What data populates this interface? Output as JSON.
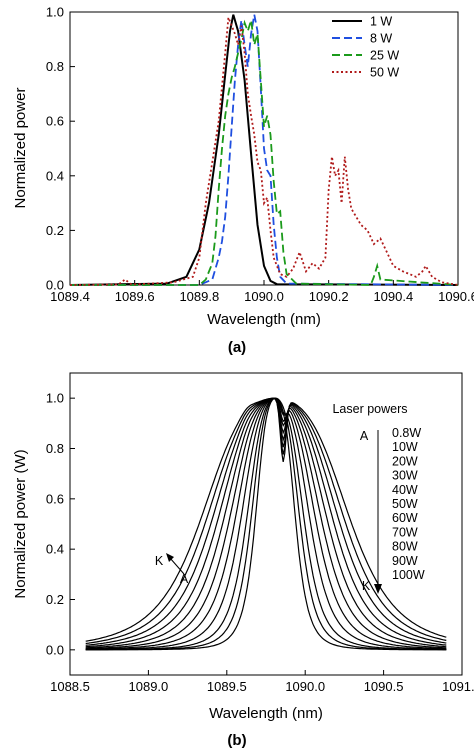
{
  "figure": {
    "panel_a_label": "(a)",
    "panel_b_label": "(b)"
  },
  "chart_data": [
    {
      "type": "line",
      "panel": "(a)",
      "xlabel": "Wavelength (nm)",
      "ylabel": "Normalized power",
      "xlim": [
        1089.4,
        1090.6
      ],
      "ylim": [
        0,
        1.0
      ],
      "xticks": [
        "1089.4",
        "1089.6",
        "1089.8",
        "1090.0",
        "1090.2",
        "1090.4",
        "1090.6"
      ],
      "yticks": [
        "0.0",
        "0.2",
        "0.4",
        "0.6",
        "0.8",
        "1.0"
      ],
      "legend_position": "top-right",
      "series": [
        {
          "name": "1 W",
          "color": "#000000",
          "dash": "solid",
          "x": [
            1089.4,
            1089.7,
            1089.76,
            1089.8,
            1089.83,
            1089.86,
            1089.88,
            1089.895,
            1089.905,
            1089.92,
            1089.94,
            1089.96,
            1089.98,
            1090.0,
            1090.02,
            1090.04,
            1090.6
          ],
          "y": [
            0,
            0.005,
            0.03,
            0.13,
            0.3,
            0.55,
            0.77,
            0.93,
            0.99,
            0.93,
            0.75,
            0.48,
            0.22,
            0.07,
            0.015,
            0.003,
            0
          ]
        },
        {
          "name": "8 W",
          "color": "#1f4fe0",
          "dash": "dashed",
          "x": [
            1089.4,
            1089.8,
            1089.84,
            1089.86,
            1089.87,
            1089.88,
            1089.89,
            1089.9,
            1089.91,
            1089.92,
            1089.93,
            1089.94,
            1089.95,
            1089.96,
            1089.97,
            1089.98,
            1089.99,
            1090.0,
            1090.01,
            1090.02,
            1090.03,
            1090.04,
            1090.05,
            1090.07,
            1090.6
          ],
          "y": [
            0,
            0,
            0.02,
            0.1,
            0.16,
            0.25,
            0.4,
            0.58,
            0.75,
            0.88,
            0.97,
            0.88,
            0.8,
            0.92,
            0.99,
            0.93,
            0.72,
            0.5,
            0.42,
            0.4,
            0.22,
            0.1,
            0.03,
            0.005,
            0
          ]
        },
        {
          "name": "25 W",
          "color": "#1b9a1b",
          "dash": "dashed",
          "x": [
            1089.4,
            1089.8,
            1089.82,
            1089.84,
            1089.85,
            1089.86,
            1089.87,
            1089.88,
            1089.89,
            1089.9,
            1089.91,
            1089.92,
            1089.93,
            1089.94,
            1089.95,
            1089.96,
            1089.97,
            1089.98,
            1089.99,
            1090.0,
            1090.01,
            1090.02,
            1090.03,
            1090.04,
            1090.05,
            1090.06,
            1090.07,
            1090.1,
            1090.33,
            1090.34,
            1090.35,
            1090.36,
            1090.6
          ],
          "y": [
            0,
            0,
            0.02,
            0.08,
            0.18,
            0.35,
            0.5,
            0.62,
            0.7,
            0.76,
            0.8,
            0.85,
            0.9,
            0.96,
            0.93,
            0.97,
            0.88,
            0.92,
            0.75,
            0.58,
            0.62,
            0.55,
            0.38,
            0.26,
            0.27,
            0.12,
            0.04,
            0.005,
            0,
            0.03,
            0.07,
            0.02,
            0
          ]
        },
        {
          "name": "50 W",
          "color": "#b01a1a",
          "dash": "dotted",
          "x": [
            1089.4,
            1089.55,
            1089.57,
            1089.59,
            1089.65,
            1089.72,
            1089.78,
            1089.8,
            1089.82,
            1089.84,
            1089.86,
            1089.88,
            1089.89,
            1089.91,
            1089.92,
            1089.93,
            1089.94,
            1089.95,
            1089.96,
            1089.97,
            1089.98,
            1089.99,
            1090.0,
            1090.01,
            1090.02,
            1090.03,
            1090.05,
            1090.07,
            1090.09,
            1090.11,
            1090.13,
            1090.15,
            1090.17,
            1090.19,
            1090.2,
            1090.21,
            1090.22,
            1090.23,
            1090.24,
            1090.25,
            1090.26,
            1090.27,
            1090.28,
            1090.29,
            1090.3,
            1090.32,
            1090.34,
            1090.36,
            1090.38,
            1090.4,
            1090.43,
            1090.45,
            1090.47,
            1090.49,
            1090.5,
            1090.52,
            1090.55,
            1090.6
          ],
          "y": [
            0,
            0.002,
            0.02,
            0.002,
            0.005,
            0.01,
            0.03,
            0.1,
            0.3,
            0.45,
            0.6,
            0.85,
            0.98,
            0.92,
            0.88,
            0.95,
            0.85,
            0.7,
            0.62,
            0.55,
            0.45,
            0.42,
            0.3,
            0.32,
            0.2,
            0.1,
            0.04,
            0.03,
            0.06,
            0.12,
            0.05,
            0.08,
            0.06,
            0.1,
            0.35,
            0.47,
            0.4,
            0.42,
            0.3,
            0.47,
            0.35,
            0.28,
            0.26,
            0.24,
            0.22,
            0.2,
            0.15,
            0.17,
            0.12,
            0.07,
            0.05,
            0.04,
            0.03,
            0.05,
            0.07,
            0.03,
            0.01,
            0
          ]
        }
      ]
    },
    {
      "type": "line",
      "panel": "(b)",
      "xlabel": "Wavelength (nm)",
      "ylabel": "Normalized power (W)",
      "xlim": [
        1088.5,
        1091.0
      ],
      "ylim": [
        -0.1,
        1.1
      ],
      "xticks": [
        "1088.5",
        "1089.0",
        "1089.5",
        "1090.0",
        "1090.5",
        "1091.0"
      ],
      "yticks": [
        "0.0",
        "0.2",
        "0.4",
        "0.6",
        "0.8",
        "1.0"
      ],
      "legend_title": "Laser powers",
      "legend_position": "top-right",
      "arrow_start_label": "A",
      "arrow_end_label": "K",
      "series_color": "#000000",
      "series": [
        {
          "name": "0.8W",
          "center": 1089.81,
          "halfwidth": 0.14,
          "dip": 0.0
        },
        {
          "name": "10W",
          "center": 1089.81,
          "halfwidth": 0.17,
          "dip": 0.0
        },
        {
          "name": "20W",
          "center": 1089.81,
          "halfwidth": 0.2,
          "dip": 0.03
        },
        {
          "name": "30W",
          "center": 1089.81,
          "halfwidth": 0.24,
          "dip": 0.05
        },
        {
          "name": "40W",
          "center": 1089.81,
          "halfwidth": 0.28,
          "dip": 0.08
        },
        {
          "name": "50W",
          "center": 1089.81,
          "halfwidth": 0.32,
          "dip": 0.1
        },
        {
          "name": "60W",
          "center": 1089.81,
          "halfwidth": 0.36,
          "dip": 0.13
        },
        {
          "name": "70W",
          "center": 1089.81,
          "halfwidth": 0.4,
          "dip": 0.16
        },
        {
          "name": "80W",
          "center": 1089.81,
          "halfwidth": 0.44,
          "dip": 0.19
        },
        {
          "name": "90W",
          "center": 1089.81,
          "halfwidth": 0.48,
          "dip": 0.22
        },
        {
          "name": "100W",
          "center": 1089.81,
          "halfwidth": 0.52,
          "dip": 0.25
        }
      ]
    }
  ]
}
